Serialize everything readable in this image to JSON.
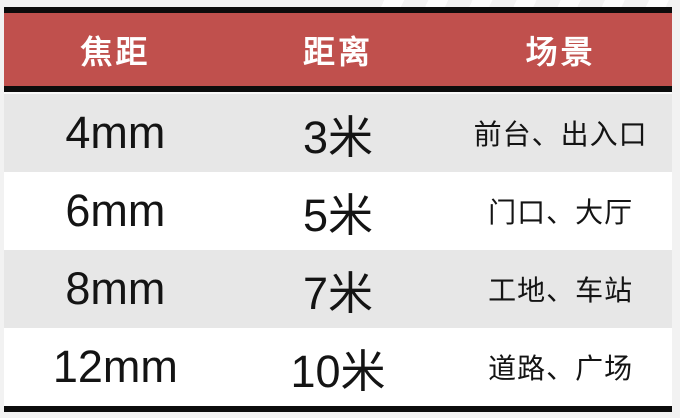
{
  "chart_data": {
    "type": "table",
    "title": "",
    "columns": [
      "焦距",
      "距离",
      "场景"
    ],
    "rows": [
      [
        "4mm",
        "3米",
        "前台、出入口"
      ],
      [
        "6mm",
        "5米",
        "门口、大厅"
      ],
      [
        "8mm",
        "7米",
        "工地、车站"
      ],
      [
        "12mm",
        "10米",
        "道路、广场"
      ]
    ],
    "layout_hints": {
      "header_style": "red band with black top and bottom borders, white bold text",
      "row_banding": [
        "gray",
        "white",
        "gray",
        "white"
      ],
      "alignment": "center"
    }
  },
  "colors": {
    "header_bg": "#C0504D",
    "header_text": "#FFFFFF",
    "border_black": "#0C0C0C",
    "band_gray": "#E7E7E7",
    "band_white": "#FFFFFF",
    "body_text": "#141414",
    "page_bg": "#F2F2F2"
  }
}
